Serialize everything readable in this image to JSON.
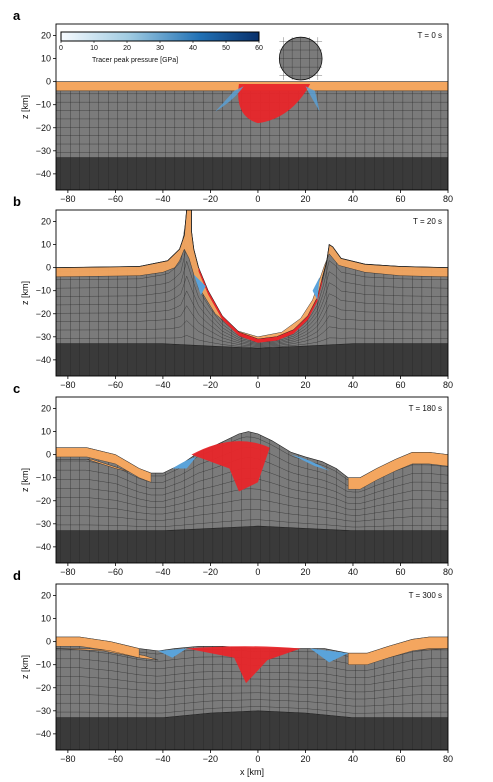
{
  "colors": {
    "crust": "#f4a65f",
    "mantle": "#7b7b7b",
    "deep": "#3a3a3a",
    "grid": "#1a1a1a",
    "hot": "#e8262a",
    "cool": "#5aa3da"
  },
  "colorbar": {
    "label": "Tracer peak pressure [GPa]",
    "ticks": [
      "0",
      "10",
      "20",
      "30",
      "40",
      "50",
      "60"
    ],
    "range": [
      0,
      60
    ]
  },
  "chart_data": [
    {
      "type": "area",
      "panel": "a",
      "time_label": "T = 0 s",
      "xlabel": "",
      "ylabel": "z [km]",
      "xlim": [
        -85,
        80
      ],
      "ylim": [
        -47,
        25
      ],
      "xticks": [
        -80,
        -60,
        -40,
        -20,
        0,
        20,
        40,
        60,
        80
      ],
      "yticks": [
        20,
        10,
        0,
        -10,
        -20,
        -30,
        -40
      ],
      "surface_top": [
        [
          -85,
          0
        ],
        [
          80,
          0
        ]
      ],
      "crust_base": [
        [
          -85,
          -4
        ],
        [
          80,
          -4
        ]
      ],
      "mantle_base": [
        [
          -85,
          -33
        ],
        [
          80,
          -33
        ]
      ],
      "projectile": {
        "center": [
          18,
          10
        ],
        "radius_km": 9
      }
    },
    {
      "type": "area",
      "panel": "b",
      "time_label": "T = 20 s",
      "xlabel": "",
      "ylabel": "z [km]",
      "xlim": [
        -85,
        80
      ],
      "ylim": [
        -47,
        25
      ],
      "xticks": [
        -80,
        -60,
        -40,
        -20,
        0,
        20,
        40,
        60,
        80
      ],
      "yticks": [
        20,
        10,
        0,
        -10,
        -20,
        -30,
        -40
      ],
      "surface_top": [
        [
          -85,
          0
        ],
        [
          -50,
          0.5
        ],
        [
          -38,
          3
        ],
        [
          -33,
          8
        ],
        [
          -31,
          14
        ],
        [
          -30,
          25
        ],
        [
          -28,
          25
        ],
        [
          -28,
          16
        ],
        [
          -27,
          8
        ],
        [
          -25,
          0
        ],
        [
          -21,
          -10
        ],
        [
          -15,
          -21
        ],
        [
          -8,
          -28
        ],
        [
          0,
          -31
        ],
        [
          8,
          -30
        ],
        [
          15,
          -27
        ],
        [
          21,
          -21
        ],
        [
          25,
          -13
        ],
        [
          27,
          -5
        ],
        [
          29,
          3
        ],
        [
          30,
          10
        ],
        [
          31.5,
          9
        ],
        [
          35,
          4
        ],
        [
          45,
          1.5
        ],
        [
          60,
          0.5
        ],
        [
          80,
          0
        ]
      ],
      "crust_base": [
        [
          -85,
          -4
        ],
        [
          -50,
          -3.5
        ],
        [
          -40,
          -2
        ],
        [
          -35,
          0
        ],
        [
          -33,
          3
        ],
        [
          -31,
          8
        ],
        [
          -29,
          4
        ],
        [
          -27,
          -3
        ],
        [
          -24,
          -10
        ],
        [
          -18,
          -20
        ],
        [
          -10,
          -27
        ],
        [
          0,
          -30
        ],
        [
          10,
          -28
        ],
        [
          18,
          -22
        ],
        [
          23,
          -14
        ],
        [
          26,
          -5
        ],
        [
          28,
          1
        ],
        [
          30,
          6
        ],
        [
          34,
          1
        ],
        [
          45,
          -2
        ],
        [
          60,
          -3.5
        ],
        [
          80,
          -4
        ]
      ],
      "mantle_base": [
        [
          -85,
          -33
        ],
        [
          -40,
          -33
        ],
        [
          -20,
          -34
        ],
        [
          0,
          -35
        ],
        [
          20,
          -34
        ],
        [
          40,
          -33
        ],
        [
          80,
          -33
        ]
      ]
    },
    {
      "type": "area",
      "panel": "c",
      "time_label": "T = 180 s",
      "xlabel": "",
      "ylabel": "z [km]",
      "xlim": [
        -85,
        80
      ],
      "ylim": [
        -47,
        25
      ],
      "xticks": [
        -80,
        -60,
        -40,
        -20,
        0,
        20,
        40,
        60,
        80
      ],
      "yticks": [
        20,
        10,
        0,
        -10,
        -20,
        -30,
        -40
      ],
      "surface_top": [
        [
          -85,
          3
        ],
        [
          -72,
          3
        ],
        [
          -60,
          0
        ],
        [
          -50,
          -6
        ],
        [
          -45,
          -8
        ],
        [
          -40,
          -8
        ],
        [
          -32,
          -4
        ],
        [
          -25,
          1
        ],
        [
          -18,
          4
        ],
        [
          -12,
          7
        ],
        [
          -8,
          9
        ],
        [
          -4,
          10
        ],
        [
          0,
          9
        ],
        [
          6,
          6
        ],
        [
          14,
          1
        ],
        [
          20,
          -1
        ],
        [
          27,
          -3
        ],
        [
          33,
          -6
        ],
        [
          38,
          -10
        ],
        [
          43,
          -10
        ],
        [
          50,
          -6
        ],
        [
          58,
          -2
        ],
        [
          65,
          1
        ],
        [
          72,
          1
        ],
        [
          80,
          0
        ]
      ],
      "crust_base": [
        [
          -85,
          -2
        ],
        [
          -72,
          -2
        ],
        [
          -60,
          -6
        ],
        [
          -52,
          -8
        ],
        [
          -48,
          -9
        ],
        [
          -55,
          -7
        ],
        [
          -70,
          -2
        ],
        [
          -85,
          -2
        ]
      ],
      "mantle_base": [
        [
          -85,
          -33
        ],
        [
          -40,
          -33
        ],
        [
          -20,
          -32
        ],
        [
          0,
          -31
        ],
        [
          20,
          -32
        ],
        [
          40,
          -33
        ],
        [
          80,
          -33
        ]
      ]
    },
    {
      "type": "area",
      "panel": "d",
      "time_label": "T = 300 s",
      "xlabel": "x [km]",
      "ylabel": "z [km]",
      "xlim": [
        -85,
        80
      ],
      "ylim": [
        -47,
        25
      ],
      "xticks": [
        -80,
        -60,
        -40,
        -20,
        0,
        20,
        40,
        60,
        80
      ],
      "yticks": [
        20,
        10,
        0,
        -10,
        -20,
        -30,
        -40
      ],
      "surface_top": [
        [
          -85,
          2
        ],
        [
          -75,
          2
        ],
        [
          -62,
          0
        ],
        [
          -50,
          -3
        ],
        [
          -42,
          -4
        ],
        [
          -35,
          -3
        ],
        [
          -25,
          -2
        ],
        [
          -15,
          -2
        ],
        [
          0,
          -3
        ],
        [
          15,
          -3
        ],
        [
          28,
          -3
        ],
        [
          38,
          -5
        ],
        [
          46,
          -5
        ],
        [
          55,
          -2
        ],
        [
          65,
          1
        ],
        [
          72,
          2
        ],
        [
          80,
          2
        ]
      ],
      "crust_base": [
        [
          -85,
          -3
        ],
        [
          -72,
          -3
        ],
        [
          -60,
          -4
        ],
        [
          -48,
          -6
        ],
        [
          -42,
          -8
        ],
        [
          -50,
          -7
        ],
        [
          -65,
          -4
        ],
        [
          -85,
          -3
        ]
      ],
      "mantle_base": [
        [
          -85,
          -33
        ],
        [
          -40,
          -33
        ],
        [
          -20,
          -31
        ],
        [
          0,
          -30
        ],
        [
          20,
          -31
        ],
        [
          40,
          -33
        ],
        [
          80,
          -33
        ]
      ]
    }
  ]
}
